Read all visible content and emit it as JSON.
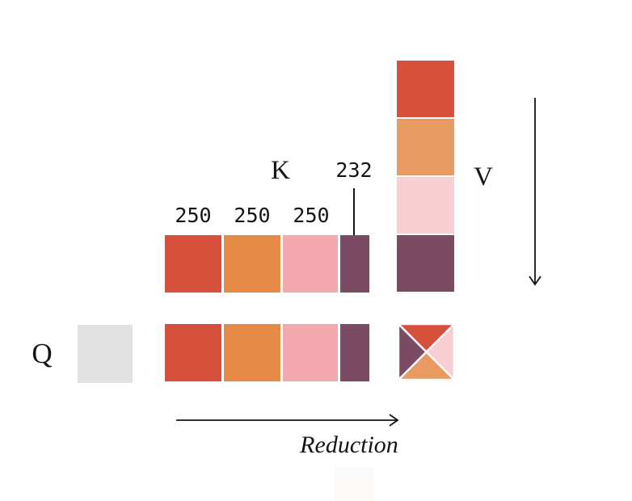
{
  "palette": {
    "red": "#d6503c",
    "orange": "#e68a48",
    "pink": "#f3a8ad",
    "plum": "#7b4a63",
    "orange-light": "#e89a63",
    "pink-light": "#f9ced2",
    "gray": "#e2e2e2",
    "ink": "#141414",
    "bg": "#ffffff"
  },
  "k_row": {
    "label": "K",
    "blocks": [
      {
        "color": "red",
        "count": "250",
        "width": "full"
      },
      {
        "color": "orange",
        "count": "250",
        "width": "full"
      },
      {
        "color": "pink",
        "count": "250",
        "width": "full"
      },
      {
        "color": "plum",
        "count": "232",
        "width": "half"
      }
    ]
  },
  "v_column": {
    "label": "V",
    "blocks": [
      {
        "color": "red"
      },
      {
        "color": "orange-light"
      },
      {
        "color": "pink-light"
      },
      {
        "color": "plum"
      }
    ]
  },
  "q_row": {
    "label": "Q",
    "query_block": {
      "color": "gray"
    },
    "blocks": [
      {
        "color": "red",
        "width": "full"
      },
      {
        "color": "orange",
        "width": "full"
      },
      {
        "color": "pink",
        "width": "full"
      },
      {
        "color": "plum",
        "width": "half"
      }
    ],
    "result": {
      "top": "red",
      "left": "plum",
      "right": "pink-light",
      "bottom": "orange-light"
    }
  },
  "arrows": {
    "reduction_label": "Reduction"
  }
}
